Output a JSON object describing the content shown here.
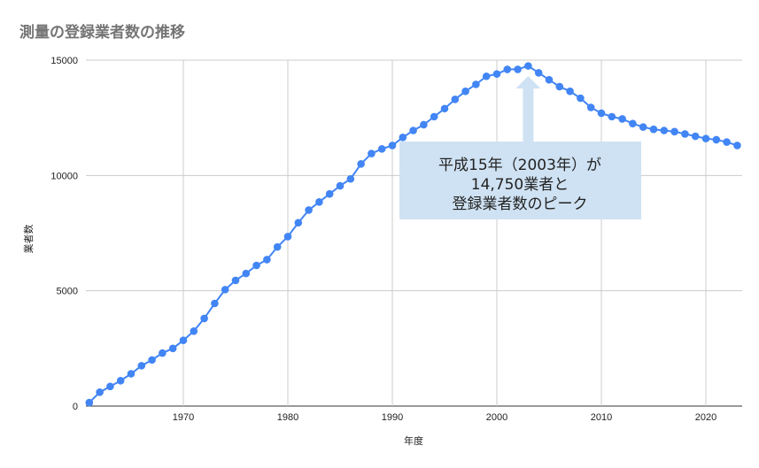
{
  "chart_data": {
    "type": "line",
    "title": "測量の登録業者数の推移",
    "xlabel": "年度",
    "ylabel": "業者数",
    "xlim": [
      1961,
      2023
    ],
    "ylim": [
      0,
      15000
    ],
    "grid": true,
    "x_ticks": [
      1970,
      1980,
      1990,
      2000,
      2010,
      2020
    ],
    "y_ticks": [
      0,
      5000,
      10000,
      15000
    ],
    "x": [
      1961,
      1962,
      1963,
      1964,
      1965,
      1966,
      1967,
      1968,
      1969,
      1970,
      1971,
      1972,
      1973,
      1974,
      1975,
      1976,
      1977,
      1978,
      1979,
      1980,
      1981,
      1982,
      1983,
      1984,
      1985,
      1986,
      1987,
      1988,
      1989,
      1990,
      1991,
      1992,
      1993,
      1994,
      1995,
      1996,
      1997,
      1998,
      1999,
      2000,
      2001,
      2002,
      2003,
      2004,
      2005,
      2006,
      2007,
      2008,
      2009,
      2010,
      2011,
      2012,
      2013,
      2014,
      2015,
      2016,
      2017,
      2018,
      2019,
      2020,
      2021,
      2022,
      2023
    ],
    "series": [
      {
        "name": "業者数",
        "color": "#4285f4",
        "values": [
          150,
          600,
          850,
          1100,
          1400,
          1750,
          2000,
          2300,
          2500,
          2850,
          3250,
          3800,
          4450,
          5050,
          5450,
          5750,
          6100,
          6350,
          6900,
          7350,
          7950,
          8500,
          8850,
          9200,
          9550,
          9850,
          10500,
          10950,
          11150,
          11300,
          11650,
          11950,
          12200,
          12550,
          12900,
          13300,
          13650,
          13950,
          14300,
          14400,
          14600,
          14600,
          14750,
          14450,
          14150,
          13850,
          13650,
          13350,
          12950,
          12700,
          12550,
          12450,
          12250,
          12100,
          12000,
          11950,
          11900,
          11800,
          11700,
          11600,
          11550,
          11450,
          11300
        ]
      }
    ],
    "annotation": {
      "lines": [
        "平成15年（2003年）が",
        "14,750業者と",
        "登録業者数のピーク"
      ],
      "target_x": 2003,
      "target_y": 14750,
      "fill": "#cfe2f3"
    }
  }
}
